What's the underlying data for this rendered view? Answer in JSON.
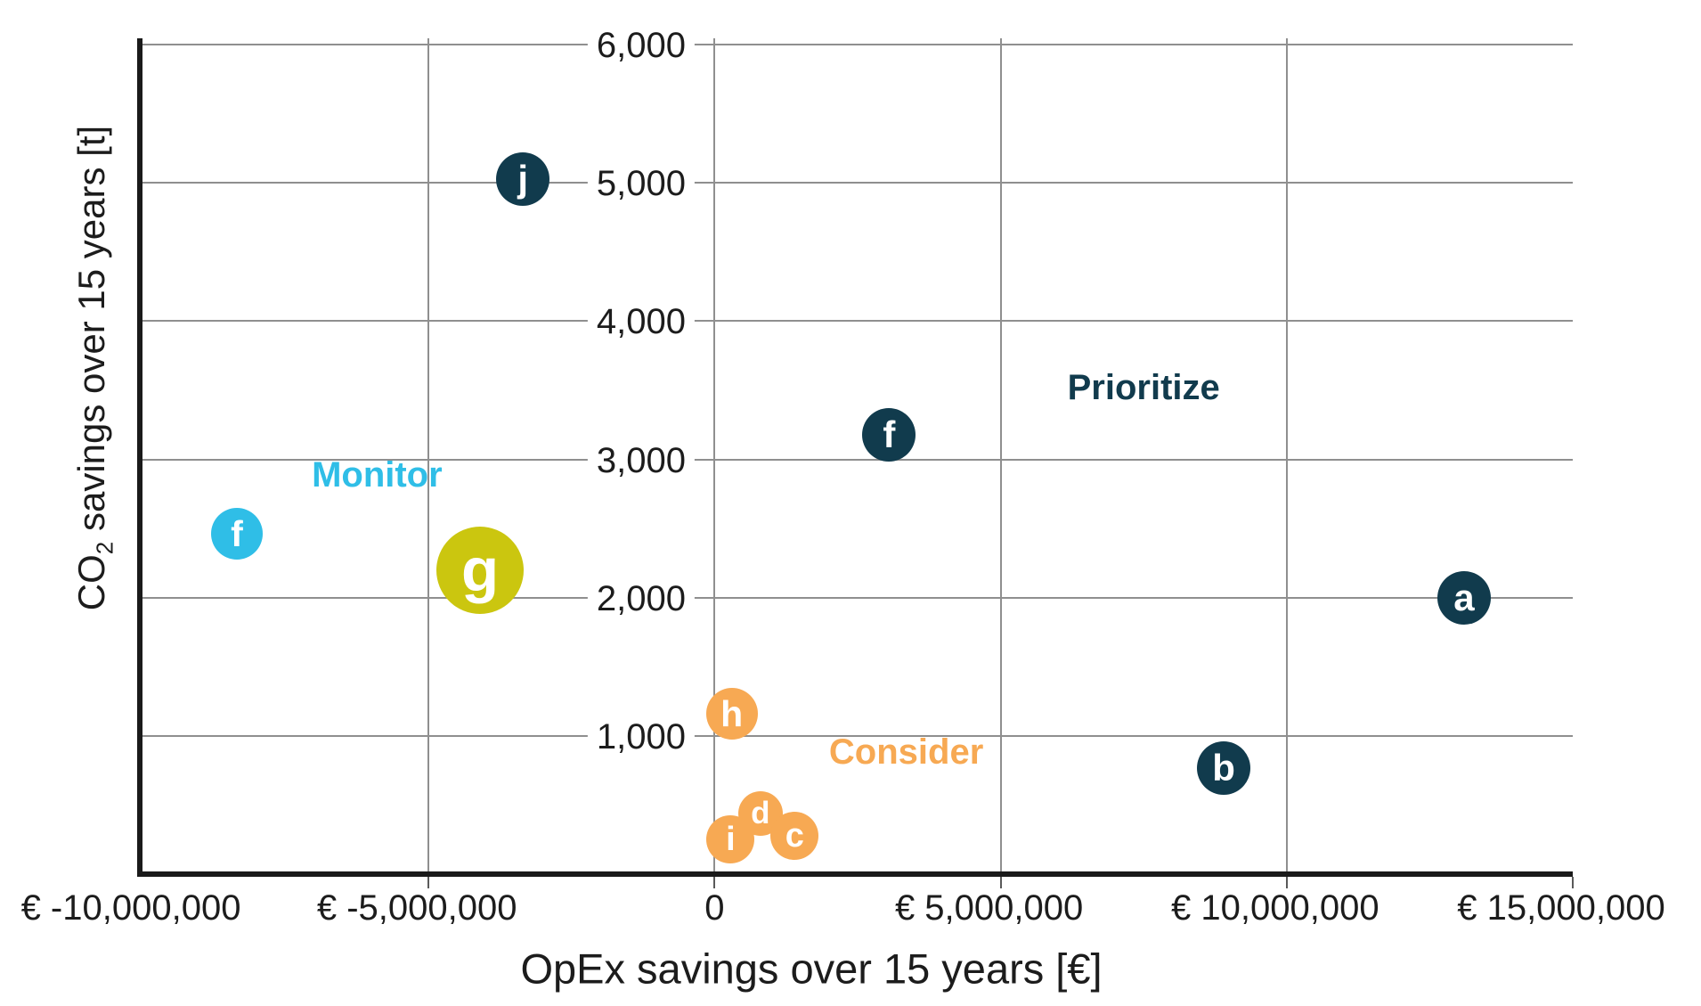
{
  "chart_data": {
    "type": "scatter",
    "title": "",
    "xlabel": "OpEx savings over 15 years [€]",
    "ylabel": "CO2 savings over 15 years [t]",
    "ylabel_parts": {
      "prefix": "CO",
      "subscript": "2",
      "suffix": " savings over 15 years [t]"
    },
    "xlim": [
      -10000000,
      15000000
    ],
    "ylim": [
      0,
      6000
    ],
    "grid": true,
    "x_ticks": [
      {
        "value": -10000000,
        "label": "€ -10,000,000",
        "gridline": false,
        "tick": false
      },
      {
        "value": -5000000,
        "label": "€ -5,000,000",
        "gridline": true,
        "tick": true
      },
      {
        "value": 0,
        "label": "0",
        "gridline": true,
        "tick": true
      },
      {
        "value": 5000000,
        "label": "€ 5,000,000",
        "gridline": true,
        "tick": true
      },
      {
        "value": 10000000,
        "label": "€ 10,000,000",
        "gridline": true,
        "tick": true
      },
      {
        "value": 15000000,
        "label": "€ 15,000,000",
        "gridline": false,
        "tick": true
      }
    ],
    "y_ticks": [
      {
        "value": 1000,
        "label": "1,000"
      },
      {
        "value": 2000,
        "label": "2,000"
      },
      {
        "value": 3000,
        "label": "3,000"
      },
      {
        "value": 4000,
        "label": "4,000"
      },
      {
        "value": 5000,
        "label": "5,000"
      },
      {
        "value": 6000,
        "label": "6,000"
      }
    ],
    "points": [
      {
        "id": "a",
        "label": "a",
        "x": 13100000,
        "y": 2000,
        "color_key": "navy",
        "radius": 30
      },
      {
        "id": "b",
        "label": "b",
        "x": 8900000,
        "y": 770,
        "color_key": "navy",
        "radius": 30
      },
      {
        "id": "f1",
        "label": "f",
        "x": 3050000,
        "y": 3180,
        "color_key": "navy",
        "radius": 30
      },
      {
        "id": "j",
        "label": "j",
        "x": -3350000,
        "y": 5030,
        "color_key": "navy",
        "radius": 30
      },
      {
        "id": "f2",
        "label": "f",
        "x": -8350000,
        "y": 2460,
        "color_key": "cyan",
        "radius": 29
      },
      {
        "id": "g",
        "label": "g",
        "x": -4100000,
        "y": 2200,
        "color_key": "yellow",
        "radius": 49
      },
      {
        "id": "h",
        "label": "h",
        "x": 300000,
        "y": 1160,
        "color_key": "orange",
        "radius": 29
      },
      {
        "id": "d",
        "label": "d",
        "x": 800000,
        "y": 440,
        "color_key": "orange",
        "radius": 25
      },
      {
        "id": "i",
        "label": "i",
        "x": 280000,
        "y": 250,
        "color_key": "orange",
        "radius": 27
      },
      {
        "id": "c",
        "label": "c",
        "x": 1400000,
        "y": 280,
        "color_key": "orange",
        "radius": 27
      }
    ],
    "annotations": [
      {
        "id": "monitor",
        "text": "Monitor",
        "x": -5900000,
        "y": 2890,
        "color_key": "cyan"
      },
      {
        "id": "prioritize",
        "text": "Prioritize",
        "x": 7500000,
        "y": 3520,
        "color_key": "navy"
      },
      {
        "id": "consider",
        "text": "Consider",
        "x": 3350000,
        "y": 880,
        "color_key": "orange"
      }
    ],
    "colors": {
      "navy": "#113b4d",
      "cyan": "#2fbee7",
      "yellow": "#cbc60f",
      "orange": "#f7a953",
      "gridline": "#8f8f8f",
      "axis": "#1a1a1a",
      "text": "#1c1c1c"
    },
    "legend_position": "none"
  }
}
